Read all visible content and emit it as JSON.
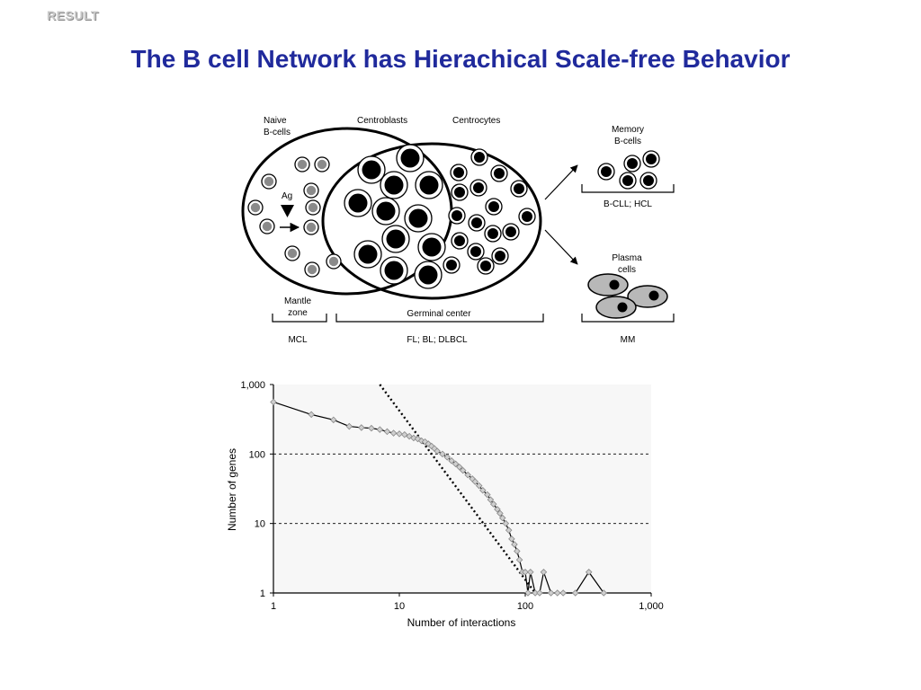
{
  "header": {
    "tag": "RESULT",
    "title": "The B cell Network has Hierachical Scale-free Behavior"
  },
  "diagram": {
    "labels": {
      "naive": [
        "Naive",
        "B-cells"
      ],
      "centroblasts": "Centroblasts",
      "centrocytes": "Centrocytes",
      "ag": "Ag",
      "memory": [
        "Memory",
        "B-cells"
      ],
      "plasma": [
        "Plasma",
        "cells"
      ],
      "mantle": [
        "Mantle",
        "zone"
      ],
      "germinal": "Germinal center",
      "mcl": "MCL",
      "fl": "FL; BL; DLBCL",
      "bcll": "B-CLL; HCL",
      "mm": "MM"
    }
  },
  "chart_data": {
    "type": "scatter",
    "title": "",
    "xlabel": "Number of interactions",
    "ylabel": "Number of genes",
    "x_scale": "log",
    "y_scale": "log",
    "xlim": [
      1,
      1000
    ],
    "ylim": [
      1,
      1000
    ],
    "x_ticks": [
      "1",
      "10",
      "100",
      "1,000"
    ],
    "y_ticks": [
      "1",
      "10",
      "100",
      "1,000"
    ],
    "grid": "horizontal dashed at 10 and 100",
    "series": [
      {
        "style": "line with diamond markers",
        "color": "#888888",
        "points": [
          [
            1,
            560
          ],
          [
            2,
            370
          ],
          [
            3,
            310
          ],
          [
            4,
            250
          ],
          [
            5,
            240
          ],
          [
            6,
            235
          ],
          [
            7,
            225
          ],
          [
            8,
            210
          ],
          [
            9,
            200
          ],
          [
            10,
            195
          ],
          [
            11,
            190
          ],
          [
            12,
            180
          ],
          [
            13,
            170
          ],
          [
            14,
            165
          ],
          [
            15,
            155
          ],
          [
            16,
            150
          ],
          [
            17,
            140
          ],
          [
            18,
            130
          ],
          [
            19,
            120
          ],
          [
            20,
            110
          ],
          [
            22,
            100
          ],
          [
            24,
            90
          ],
          [
            26,
            80
          ],
          [
            28,
            72
          ],
          [
            30,
            65
          ],
          [
            32,
            58
          ],
          [
            35,
            50
          ],
          [
            38,
            44
          ],
          [
            40,
            40
          ],
          [
            43,
            35
          ],
          [
            46,
            30
          ],
          [
            50,
            26
          ],
          [
            53,
            22
          ],
          [
            56,
            19
          ],
          [
            60,
            16
          ],
          [
            63,
            14
          ],
          [
            66,
            12
          ],
          [
            70,
            10
          ],
          [
            74,
            8
          ],
          [
            78,
            6
          ],
          [
            82,
            5
          ],
          [
            86,
            4
          ],
          [
            90,
            3
          ],
          [
            95,
            2
          ],
          [
            100,
            2
          ],
          [
            105,
            1
          ],
          [
            110,
            2
          ],
          [
            120,
            1
          ],
          [
            130,
            1
          ],
          [
            140,
            2
          ],
          [
            160,
            1
          ],
          [
            180,
            1
          ],
          [
            200,
            1
          ],
          [
            250,
            1
          ],
          [
            320,
            2
          ],
          [
            420,
            1
          ]
        ]
      },
      {
        "style": "dotted power-law fit",
        "color": "#000000",
        "points": [
          [
            7,
            1000
          ],
          [
            120,
            1
          ]
        ]
      }
    ]
  }
}
